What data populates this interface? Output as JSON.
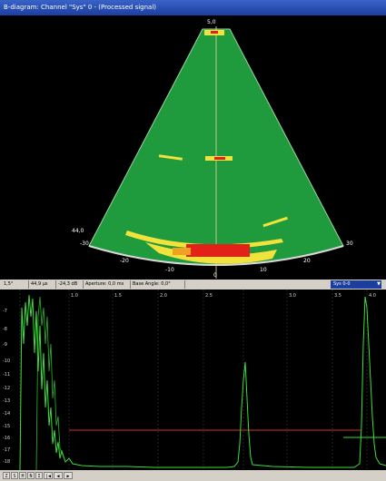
{
  "window": {
    "title": "B-diagram: Channel \"Sys\" 0 - (Processed signal)"
  },
  "bscan": {
    "range_top": "5,0",
    "range_bottom": "44,0",
    "angle_labels": [
      "-30",
      "-20",
      "-10",
      "0",
      "10",
      "20",
      "30"
    ],
    "colors": {
      "background": "#000000",
      "field": "#1f9a3c",
      "echo_yellow": "#f2e23c",
      "echo_red": "#e42118",
      "axis": "#f0d0a0"
    }
  },
  "statusbar": {
    "angle": "1,5°",
    "time": "44,9 µs",
    "amplitude": "-24,3 dB",
    "aperture": "Aperture: 0,0 ms",
    "base_angle": "Base Angle: 0,0°",
    "gate_select": "Sys 0-0"
  },
  "ascan": {
    "y_labels": [
      "-7",
      "-8",
      "-9",
      "-10",
      "-11",
      "-12",
      "-13",
      "-14",
      "-15",
      "-16",
      "-17",
      "-18"
    ],
    "x_labels": [
      "1.0",
      "1.5",
      "2.0",
      "2.5",
      "3.0",
      "3.5",
      "4.0"
    ],
    "colors": {
      "signal": "#38e038",
      "gate": "#d03030",
      "grid": "#3a3a3a"
    }
  },
  "toolbar": {
    "buttons": [
      "Z",
      "S",
      "H",
      "N",
      "I",
      "|◀",
      "◀",
      "▶"
    ]
  }
}
